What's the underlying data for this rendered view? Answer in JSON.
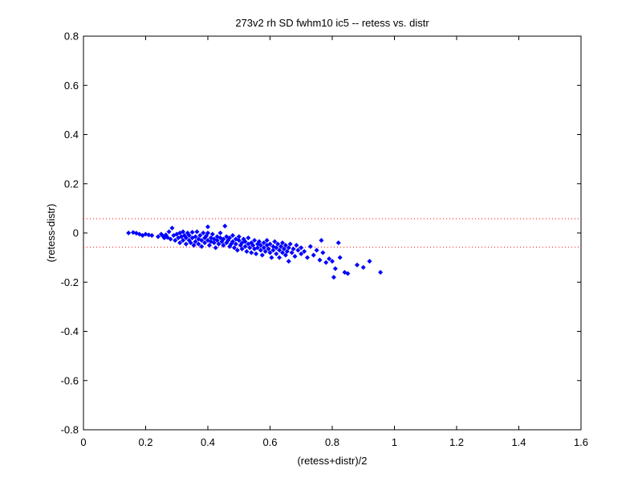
{
  "chart_data": {
    "type": "scatter",
    "title": "273v2 rh SD fwhm10 ic5 -- retess vs. distr",
    "xlabel": "(retess+distr)/2",
    "ylabel": "(retess-distr)",
    "xlim": [
      0,
      1.6
    ],
    "ylim": [
      -0.8,
      0.8
    ],
    "xticks": [
      0,
      0.2,
      0.4,
      0.6,
      0.8,
      1,
      1.2,
      1.4,
      1.6
    ],
    "yticks": [
      -0.8,
      -0.6,
      -0.4,
      -0.2,
      0,
      0.2,
      0.4,
      0.6,
      0.8
    ],
    "xtick_labels": [
      "0",
      "0.2",
      "0.4",
      "0.6",
      "0.8",
      "1",
      "1.2",
      "1.4",
      "1.6"
    ],
    "ytick_labels": [
      "-0.8",
      "-0.6",
      "-0.4",
      "-0.2",
      "0",
      "0.2",
      "0.4",
      "0.6",
      "0.8"
    ],
    "grid": false,
    "reference_lines": [
      {
        "y": 0.058,
        "style": "dotted",
        "color": "#ff0000"
      },
      {
        "y": -0.058,
        "style": "dotted",
        "color": "#ff0000"
      }
    ],
    "series": [
      {
        "color": "#0000ff",
        "marker": "diamond",
        "points": [
          [
            0.145,
            0.0
          ],
          [
            0.16,
            0.002
          ],
          [
            0.17,
            -0.001
          ],
          [
            0.18,
            -0.005
          ],
          [
            0.19,
            -0.01
          ],
          [
            0.2,
            -0.005
          ],
          [
            0.21,
            -0.008
          ],
          [
            0.22,
            -0.01
          ],
          [
            0.24,
            -0.015
          ],
          [
            0.25,
            -0.005
          ],
          [
            0.255,
            -0.012
          ],
          [
            0.26,
            -0.02
          ],
          [
            0.265,
            -0.008
          ],
          [
            0.27,
            -0.018
          ],
          [
            0.275,
            0.005
          ],
          [
            0.28,
            -0.025
          ],
          [
            0.285,
            0.02
          ],
          [
            0.29,
            -0.01
          ],
          [
            0.295,
            -0.03
          ],
          [
            0.3,
            -0.005
          ],
          [
            0.305,
            -0.02
          ],
          [
            0.31,
            -0.04
          ],
          [
            0.31,
            0.0
          ],
          [
            0.315,
            -0.015
          ],
          [
            0.32,
            -0.03
          ],
          [
            0.32,
            0.005
          ],
          [
            0.325,
            -0.01
          ],
          [
            0.33,
            -0.045
          ],
          [
            0.33,
            -0.02
          ],
          [
            0.335,
            0.0
          ],
          [
            0.34,
            -0.03
          ],
          [
            0.34,
            -0.01
          ],
          [
            0.345,
            -0.04
          ],
          [
            0.35,
            -0.02
          ],
          [
            0.35,
            0.003
          ],
          [
            0.355,
            -0.05
          ],
          [
            0.36,
            -0.015
          ],
          [
            0.36,
            -0.035
          ],
          [
            0.365,
            0.005
          ],
          [
            0.37,
            -0.025
          ],
          [
            0.37,
            -0.045
          ],
          [
            0.375,
            -0.01
          ],
          [
            0.38,
            -0.03
          ],
          [
            0.38,
            -0.055
          ],
          [
            0.385,
            0.0
          ],
          [
            0.39,
            -0.02
          ],
          [
            0.39,
            -0.04
          ],
          [
            0.395,
            -0.012
          ],
          [
            0.4,
            -0.03
          ],
          [
            0.4,
            0.0
          ],
          [
            0.4,
            0.025
          ],
          [
            0.405,
            -0.05
          ],
          [
            0.41,
            -0.02
          ],
          [
            0.41,
            -0.035
          ],
          [
            0.415,
            -0.005
          ],
          [
            0.42,
            -0.04
          ],
          [
            0.42,
            -0.025
          ],
          [
            0.425,
            -0.06
          ],
          [
            0.43,
            -0.015
          ],
          [
            0.43,
            -0.03
          ],
          [
            0.435,
            -0.045
          ],
          [
            0.44,
            -0.02
          ],
          [
            0.44,
            0.0
          ],
          [
            0.445,
            -0.035
          ],
          [
            0.45,
            -0.05
          ],
          [
            0.45,
            -0.025
          ],
          [
            0.455,
            0.028
          ],
          [
            0.46,
            -0.015
          ],
          [
            0.46,
            -0.04
          ],
          [
            0.465,
            -0.03
          ],
          [
            0.47,
            -0.055
          ],
          [
            0.47,
            -0.02
          ],
          [
            0.475,
            -0.045
          ],
          [
            0.48,
            -0.01
          ],
          [
            0.48,
            -0.035
          ],
          [
            0.485,
            -0.06
          ],
          [
            0.49,
            -0.025
          ],
          [
            0.49,
            -0.045
          ],
          [
            0.495,
            -0.07
          ],
          [
            0.5,
            -0.03
          ],
          [
            0.5,
            -0.015
          ],
          [
            0.505,
            -0.05
          ],
          [
            0.51,
            -0.04
          ],
          [
            0.51,
            -0.065
          ],
          [
            0.515,
            -0.025
          ],
          [
            0.52,
            -0.055
          ],
          [
            0.52,
            -0.035
          ],
          [
            0.525,
            -0.075
          ],
          [
            0.53,
            -0.045
          ],
          [
            0.53,
            -0.02
          ],
          [
            0.535,
            -0.06
          ],
          [
            0.54,
            -0.04
          ],
          [
            0.54,
            -0.08
          ],
          [
            0.545,
            -0.05
          ],
          [
            0.55,
            -0.03
          ],
          [
            0.55,
            -0.065
          ],
          [
            0.555,
            -0.085
          ],
          [
            0.56,
            -0.045
          ],
          [
            0.56,
            -0.06
          ],
          [
            0.565,
            -0.035
          ],
          [
            0.57,
            -0.07
          ],
          [
            0.57,
            -0.05
          ],
          [
            0.575,
            -0.09
          ],
          [
            0.58,
            -0.04
          ],
          [
            0.58,
            -0.06
          ],
          [
            0.585,
            -0.075
          ],
          [
            0.59,
            -0.05
          ],
          [
            0.59,
            -0.03
          ],
          [
            0.595,
            -0.065
          ],
          [
            0.6,
            -0.08
          ],
          [
            0.6,
            -0.045
          ],
          [
            0.605,
            -0.1
          ],
          [
            0.61,
            -0.055
          ],
          [
            0.61,
            -0.07
          ],
          [
            0.615,
            -0.035
          ],
          [
            0.62,
            -0.06
          ],
          [
            0.62,
            -0.085
          ],
          [
            0.625,
            -0.045
          ],
          [
            0.63,
            -0.07
          ],
          [
            0.63,
            -0.1
          ],
          [
            0.635,
            -0.055
          ],
          [
            0.64,
            -0.08
          ],
          [
            0.64,
            -0.04
          ],
          [
            0.645,
            -0.065
          ],
          [
            0.65,
            -0.09
          ],
          [
            0.65,
            -0.05
          ],
          [
            0.655,
            -0.075
          ],
          [
            0.66,
            -0.06
          ],
          [
            0.66,
            -0.115
          ],
          [
            0.665,
            -0.045
          ],
          [
            0.67,
            -0.08
          ],
          [
            0.675,
            -0.065
          ],
          [
            0.68,
            -0.095
          ],
          [
            0.685,
            -0.05
          ],
          [
            0.69,
            -0.07
          ],
          [
            0.7,
            -0.085
          ],
          [
            0.7,
            -0.06
          ],
          [
            0.71,
            -0.075
          ],
          [
            0.72,
            -0.1
          ],
          [
            0.73,
            -0.055
          ],
          [
            0.74,
            -0.09
          ],
          [
            0.75,
            -0.07
          ],
          [
            0.76,
            -0.11
          ],
          [
            0.765,
            -0.03
          ],
          [
            0.77,
            -0.08
          ],
          [
            0.78,
            -0.12
          ],
          [
            0.79,
            -0.105
          ],
          [
            0.8,
            -0.115
          ],
          [
            0.805,
            -0.18
          ],
          [
            0.81,
            -0.145
          ],
          [
            0.82,
            -0.04
          ],
          [
            0.825,
            -0.1
          ],
          [
            0.84,
            -0.16
          ],
          [
            0.85,
            -0.165
          ],
          [
            0.88,
            -0.13
          ],
          [
            0.9,
            -0.14
          ],
          [
            0.92,
            -0.115
          ],
          [
            0.955,
            -0.16
          ]
        ]
      }
    ]
  }
}
